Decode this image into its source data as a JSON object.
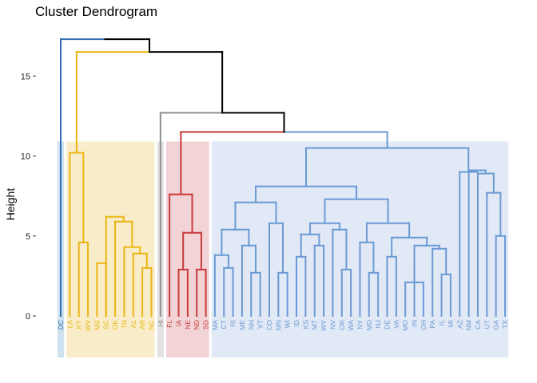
{
  "chart_data": {
    "type": "dendrogram",
    "title": "Cluster Dendrogram",
    "ylabel": "Height",
    "xlabel": "",
    "ylim": [
      -2.6,
      17.5
    ],
    "yticks": [
      0,
      5,
      10,
      15
    ],
    "grid": false,
    "clusters": [
      {
        "id": 1,
        "color": "#2E6FB2",
        "fill": "#CFE0EE"
      },
      {
        "id": 2,
        "color": "#EBB515",
        "fill": "#F8EDC8"
      },
      {
        "id": 3,
        "color": "#8E8E8E",
        "fill": "#E3E3E3"
      },
      {
        "id": 4,
        "color": "#C8393B",
        "fill": "#F2D4D6"
      },
      {
        "id": 5,
        "color": "#6B9AD4",
        "fill": "#E1E8F6"
      }
    ],
    "trunk_color": "#000000",
    "leaves": [
      "DC",
      "LA",
      "KY",
      "WV",
      "MS",
      "SC",
      "OK",
      "TN",
      "AL",
      "AR",
      "NC",
      "HI",
      "FL",
      "IA",
      "NE",
      "ND",
      "SD",
      "MA",
      "CT",
      "RI",
      "ME",
      "NH",
      "VT",
      "CO",
      "MN",
      "WI",
      "ID",
      "KS",
      "MT",
      "WY",
      "NV",
      "OR",
      "WA",
      "NY",
      "MD",
      "NJ",
      "DE",
      "VA",
      "MO",
      "IN",
      "OH",
      "PA",
      "IL",
      "MI",
      "AZ",
      "NM",
      "CA",
      "UT",
      "GA",
      "TX"
    ],
    "leaf_cluster": [
      1,
      2,
      2,
      2,
      2,
      2,
      2,
      2,
      2,
      2,
      2,
      3,
      4,
      4,
      4,
      4,
      4,
      5,
      5,
      5,
      5,
      5,
      5,
      5,
      5,
      5,
      5,
      5,
      5,
      5,
      5,
      5,
      5,
      5,
      5,
      5,
      5,
      5,
      5,
      5,
      5,
      5,
      5,
      5,
      5,
      5,
      5,
      5,
      5,
      5
    ],
    "merges": [
      {
        "a": "L:NC",
        "b": "L:AR",
        "h": 3.0,
        "c": 2
      },
      {
        "a": "L:AL",
        "b": "N:0",
        "h": 3.9,
        "c": 2
      },
      {
        "a": "L:TN",
        "b": "N:1",
        "h": 4.3,
        "c": 2
      },
      {
        "a": "L:OK",
        "b": "N:2",
        "h": 5.9,
        "c": 2
      },
      {
        "a": "L:SC",
        "b": "N:3",
        "h": 6.2,
        "c": 2
      },
      {
        "a": "L:MS",
        "b": "L:SC",
        "h": 3.3,
        "c": 2
      },
      {
        "a": "L:KY",
        "b": "L:WV",
        "h": 4.6,
        "c": 2
      },
      {
        "a": "L:LA",
        "b": "N:6",
        "h": 10.2,
        "c": 2
      },
      {
        "a": "L:IA",
        "b": "L:NE",
        "h": 2.9,
        "c": 4
      },
      {
        "a": "L:ND",
        "b": "L:SD",
        "h": 2.9,
        "c": 4
      },
      {
        "a": "N:8",
        "b": "N:9",
        "h": 5.2,
        "c": 4
      },
      {
        "a": "L:FL",
        "b": "N:10",
        "h": 7.6,
        "c": 4
      },
      {
        "a": "L:RI",
        "b": "L:CT",
        "h": 3.0,
        "c": 5
      },
      {
        "a": "L:MA",
        "b": "N:12",
        "h": 3.8,
        "c": 5
      },
      {
        "a": "L:NH",
        "b": "L:VT",
        "h": 2.7,
        "c": 5
      },
      {
        "a": "L:ME",
        "b": "N:14",
        "h": 4.4,
        "c": 5
      },
      {
        "a": "N:13",
        "b": "N:15",
        "h": 5.4,
        "c": 5
      },
      {
        "a": "L:MN",
        "b": "L:WI",
        "h": 2.7,
        "c": 5
      },
      {
        "a": "L:CO",
        "b": "N:17",
        "h": 5.8,
        "c": 5
      },
      {
        "a": "N:16",
        "b": "N:18",
        "h": 7.1,
        "c": 5
      },
      {
        "a": "L:ID",
        "b": "L:KS",
        "h": 3.7,
        "c": 5
      },
      {
        "a": "L:MT",
        "b": "L:WY",
        "h": 4.4,
        "c": 5
      },
      {
        "a": "N:20",
        "b": "N:21",
        "h": 5.1,
        "c": 5
      },
      {
        "a": "L:OR",
        "b": "L:WA",
        "h": 2.9,
        "c": 5
      },
      {
        "a": "L:NV",
        "b": "N:23",
        "h": 5.4,
        "c": 5
      },
      {
        "a": "N:22",
        "b": "N:24",
        "h": 5.8,
        "c": 5
      },
      {
        "a": "L:MD",
        "b": "L:NJ",
        "h": 2.7,
        "c": 5
      },
      {
        "a": "L:NY",
        "b": "N:26",
        "h": 4.6,
        "c": 5
      },
      {
        "a": "L:DE",
        "b": "L:VA",
        "h": 3.7,
        "c": 5
      },
      {
        "a": "L:OH",
        "b": "L:MO",
        "h": 2.1,
        "c": 5
      },
      {
        "a": "L:IN",
        "b": "N:29",
        "h": 3.2,
        "c": 5
      },
      {
        "a": "L:IL",
        "b": "L:MI",
        "h": 2.6,
        "c": 5
      },
      {
        "a": "L:PA",
        "b": "N:31",
        "h": 4.2,
        "c": 5
      },
      {
        "a": "N:30",
        "b": "N:32",
        "h": 4.4,
        "c": 5
      },
      {
        "a": "N:28",
        "b": "N:33",
        "h": 4.9,
        "c": 5
      },
      {
        "a": "N:27",
        "b": "N:34",
        "h": 5.8,
        "c": 5
      },
      {
        "a": "N:25",
        "b": "N:35",
        "h": 7.3,
        "c": 5
      },
      {
        "a": "N:19",
        "b": "N:36",
        "h": 8.1,
        "c": 5
      },
      {
        "a": "L:GA",
        "b": "L:TX",
        "h": 5.0,
        "c": 5
      },
      {
        "a": "L:UT",
        "b": "N:38",
        "h": 7.7,
        "c": 5
      },
      {
        "a": "L:CA",
        "b": "N:39",
        "h": 8.9,
        "c": 5
      },
      {
        "a": "L:NM",
        "b": "N:40",
        "h": 9.1,
        "c": 5
      },
      {
        "a": "L:AZ",
        "b": "N:41",
        "h": 9.0,
        "c": 5
      },
      {
        "a": "N:37",
        "b": "N:42",
        "h": 10.5,
        "c": 5
      },
      {
        "a": "N:11",
        "b": "N:43",
        "h": 11.5,
        "c": 0
      },
      {
        "a": "L:HI",
        "b": "N:44",
        "h": 12.7,
        "c": 0
      },
      {
        "a": "N:7",
        "b": "N:45",
        "h": 16.5,
        "c": 0
      },
      {
        "a": "L:DC",
        "b": "N:46",
        "h": 17.3,
        "c": 0
      }
    ]
  }
}
